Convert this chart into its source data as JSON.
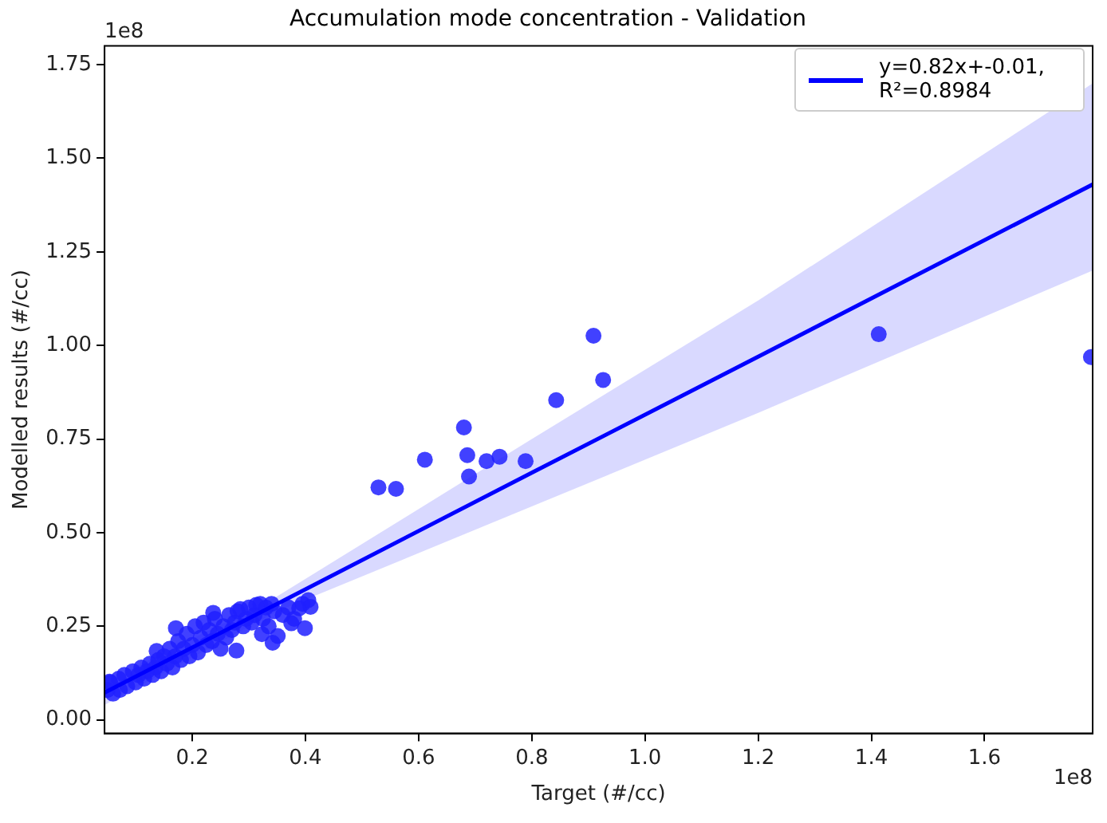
{
  "chart_data": {
    "type": "scatter",
    "title": "Accumulation mode concentration - Validation",
    "xlabel": "Target (#/cc)",
    "ylabel": "Modelled results (#/cc)",
    "annotations": [
      "1e8",
      "1e8"
    ],
    "xlim": [
      0.045,
      1.791
    ],
    "ylim": [
      -0.036,
      1.8
    ],
    "xticks": [
      0.2,
      0.4,
      0.6,
      0.8,
      {
        "value": 1,
        "label": "1.0"
      },
      1.2,
      1.4,
      1.6
    ],
    "yticks": [
      {
        "value": 0,
        "label": "0.00"
      },
      {
        "value": 0.25,
        "label": "0.25"
      },
      {
        "value": 0.5,
        "label": "0.50"
      },
      {
        "value": 0.75,
        "label": "0.75"
      },
      {
        "value": 1,
        "label": "1.00"
      },
      {
        "value": 1.25,
        "label": "1.25"
      },
      {
        "value": 1.5,
        "label": "1.50"
      },
      {
        "value": 1.75,
        "label": "1.75"
      }
    ],
    "grid": false,
    "legend": "top right",
    "series": [
      {
        "type": "scatter",
        "color": "#2020ff",
        "marker": "circle",
        "x": [
          0.05,
          0.055,
          0.06,
          0.07,
          0.072,
          0.08,
          0.085,
          0.095,
          0.1,
          0.105,
          0.11,
          0.115,
          0.12,
          0.125,
          0.13,
          0.135,
          0.14,
          0.145,
          0.15,
          0.155,
          0.16,
          0.165,
          0.17,
          0.175,
          0.18,
          0.185,
          0.19,
          0.195,
          0.2,
          0.205,
          0.21,
          0.215,
          0.22,
          0.225,
          0.23,
          0.235,
          0.24,
          0.245,
          0.25,
          0.255,
          0.26,
          0.265,
          0.27,
          0.275,
          0.28,
          0.29,
          0.295,
          0.3,
          0.305,
          0.31,
          0.32,
          0.325,
          0.33,
          0.335,
          0.34,
          0.345,
          0.36,
          0.37,
          0.38,
          0.395,
          0.405,
          0.399,
          0.389,
          0.409,
          0.351,
          0.342,
          0.323,
          0.278,
          0.171,
          0.137,
          0.237,
          0.285,
          0.313,
          0.375,
          0.054,
          0.529,
          0.56,
          0.611,
          0.68,
          0.686,
          0.689,
          0.72,
          0.743,
          0.789,
          0.843,
          0.909,
          0.926,
          1.413,
          1.788
        ],
        "values": [
          0.08,
          0.1,
          0.07,
          0.11,
          0.08,
          0.12,
          0.09,
          0.13,
          0.1,
          0.12,
          0.14,
          0.11,
          0.13,
          0.15,
          0.12,
          0.14,
          0.16,
          0.13,
          0.17,
          0.15,
          0.19,
          0.14,
          0.17,
          0.21,
          0.16,
          0.19,
          0.23,
          0.17,
          0.2,
          0.25,
          0.18,
          0.22,
          0.26,
          0.2,
          0.24,
          0.21,
          0.27,
          0.23,
          0.19,
          0.25,
          0.22,
          0.28,
          0.24,
          0.26,
          0.29,
          0.25,
          0.27,
          0.3,
          0.26,
          0.28,
          0.31,
          0.27,
          0.3,
          0.25,
          0.31,
          0.29,
          0.28,
          0.3,
          0.27,
          0.31,
          0.32,
          0.245,
          0.298,
          0.302,
          0.224,
          0.206,
          0.229,
          0.185,
          0.245,
          0.184,
          0.286,
          0.296,
          0.307,
          0.258,
          0.102,
          0.621,
          0.617,
          0.695,
          0.781,
          0.707,
          0.65,
          0.691,
          0.703,
          0.691,
          0.854,
          1.026,
          0.908,
          1.03,
          0.969
        ]
      },
      {
        "type": "line",
        "name": "y=0.82x+-0.01, R²=0.8984",
        "color": "#0000ff",
        "marker": "none",
        "x": [
          0.045,
          0.35,
          0.8,
          1.2,
          1.791
        ],
        "values": [
          0.073,
          0.31,
          0.66,
          0.97,
          1.43
        ],
        "lower": [
          0.04,
          0.29,
          0.57,
          0.82,
          1.2
        ],
        "upper": [
          0.1,
          0.33,
          0.75,
          1.12,
          1.7
        ]
      }
    ]
  }
}
